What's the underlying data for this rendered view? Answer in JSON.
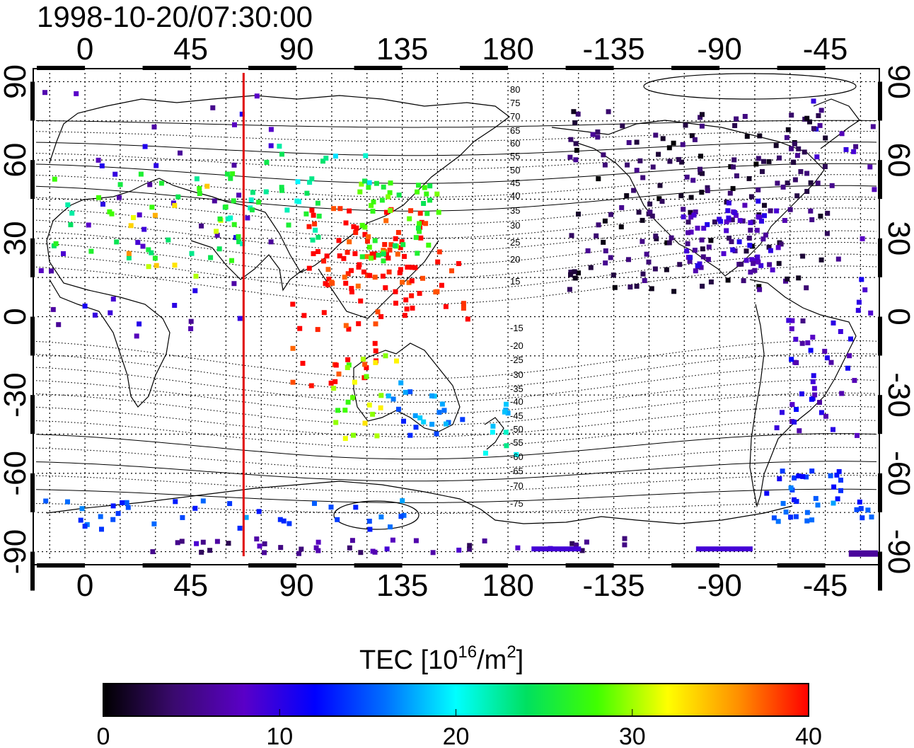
{
  "title": "1998-10-20/07:30:00",
  "map": {
    "lon_ticks_top": [
      "0",
      "45",
      "90",
      "135",
      "180",
      "-135",
      "-90",
      "-45"
    ],
    "lon_ticks_bottom": [
      "0",
      "45",
      "90",
      "135",
      "180",
      "-135",
      "-90",
      "-45"
    ],
    "lat_ticks_left": [
      "90",
      "60",
      "30",
      "0",
      "-30",
      "-60",
      "-90"
    ],
    "lat_ticks_right": [
      "90",
      "60",
      "30",
      "0",
      "-30",
      "-60",
      "-90"
    ],
    "magnetic_latitude_labels": [
      "80",
      "75",
      "70",
      "65",
      "60",
      "55",
      "50",
      "45",
      "40",
      "35",
      "30",
      "25",
      "20",
      "15",
      "-15",
      "-20",
      "-25",
      "-30",
      "-35",
      "-40",
      "-45",
      "-50",
      "-55",
      "-60",
      "-65",
      "-70",
      "-75"
    ],
    "terminator_longitude": 67.5,
    "grid": true
  },
  "colorbar": {
    "title": "TEC  [10",
    "title_sup": "16",
    "title_mid": "/m",
    "title_sup2": "2",
    "title_end": "]",
    "min": 0,
    "max": 40,
    "tick_labels": [
      "0",
      "10",
      "20",
      "30",
      "40"
    ],
    "colors": [
      "#000000",
      "#3a0a6e",
      "#5a00c8",
      "#0000ff",
      "#0070ff",
      "#00ffff",
      "#00e060",
      "#40ff00",
      "#ffff00",
      "#ff9000",
      "#ff0000"
    ]
  },
  "chart_data": {
    "type": "heatmap",
    "title": "1998-10-20/07:30:00",
    "colorbar_label": "TEC [10^16/m^2]",
    "value_range": [
      0,
      40
    ],
    "regions": [
      {
        "lon": 10,
        "lat": 52,
        "tec": 8
      },
      {
        "lon": 25,
        "lat": 40,
        "tec": 25
      },
      {
        "lon": 35,
        "lat": 33,
        "tec": 33
      },
      {
        "lon": 78,
        "lat": 40,
        "tec": 24
      },
      {
        "lon": 95,
        "lat": 57,
        "tec": 22
      },
      {
        "lon": 120,
        "lat": 28,
        "tec": 40
      },
      {
        "lon": 133,
        "lat": 38,
        "tec": 27
      },
      {
        "lon": 140,
        "lat": 12,
        "tec": 40
      },
      {
        "lon": 105,
        "lat": -5,
        "tec": 40
      },
      {
        "lon": 118,
        "lat": -30,
        "tec": 30
      },
      {
        "lon": 150,
        "lat": -35,
        "tec": 16
      },
      {
        "lon": 173,
        "lat": -42,
        "tec": 20
      },
      {
        "lon": -100,
        "lat": 45,
        "tec": 3
      },
      {
        "lon": -85,
        "lat": 32,
        "tec": 8
      },
      {
        "lon": -50,
        "lat": -20,
        "tec": 9
      },
      {
        "lon": -55,
        "lat": -68,
        "tec": 14
      },
      {
        "lon": 45,
        "lat": -75,
        "tec": 15
      },
      {
        "lon": 120,
        "lat": -87,
        "tec": 6
      }
    ]
  }
}
